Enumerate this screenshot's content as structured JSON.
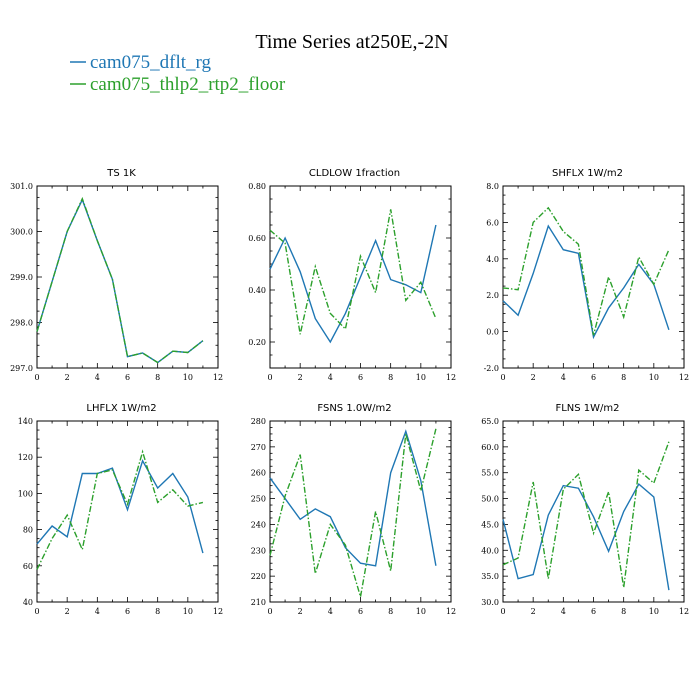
{
  "figure": {
    "title": "Time Series at250E,-2N",
    "legend": [
      {
        "name": "cam075_dflt_rg",
        "color": "#1f77b4",
        "dash": "solid"
      },
      {
        "name": "cam075_thlp2_rtp2_floor",
        "color": "#2ca02c",
        "dash": "dashdot"
      }
    ]
  },
  "chart_data": [
    {
      "type": "line",
      "title": "TS   1K",
      "x": [
        0,
        1,
        2,
        3,
        4,
        5,
        6,
        7,
        8,
        9,
        10,
        11
      ],
      "xlim": [
        0,
        12
      ],
      "xticks": [
        0,
        2,
        4,
        6,
        8,
        10,
        12
      ],
      "ylim": [
        297.0,
        301.0
      ],
      "yticks": [
        "297.0",
        "298.0",
        "299.0",
        "300.0",
        "301.0"
      ],
      "series": [
        {
          "name": "cam075_dflt_rg",
          "values": [
            297.8,
            298.9,
            300.0,
            300.7,
            299.8,
            298.95,
            297.25,
            297.33,
            297.12,
            297.37,
            297.34,
            297.6
          ]
        },
        {
          "name": "cam075_thlp2_rtp2_floor",
          "values": [
            297.8,
            298.9,
            300.0,
            300.72,
            299.8,
            298.95,
            297.25,
            297.33,
            297.12,
            297.37,
            297.34,
            297.6
          ]
        }
      ]
    },
    {
      "type": "line",
      "title": "CLDLOW   1fraction",
      "x": [
        0,
        1,
        2,
        3,
        4,
        5,
        6,
        7,
        8,
        9,
        10,
        11
      ],
      "xlim": [
        0,
        12
      ],
      "xticks": [
        0,
        2,
        4,
        6,
        8,
        10,
        12
      ],
      "ylim": [
        0.1,
        0.8
      ],
      "yticks": [
        "0.20",
        "0.40",
        "0.60",
        "0.80"
      ],
      "series": [
        {
          "name": "cam075_dflt_rg",
          "values": [
            0.48,
            0.6,
            0.47,
            0.29,
            0.2,
            0.31,
            0.45,
            0.59,
            0.44,
            0.42,
            0.39,
            0.65
          ]
        },
        {
          "name": "cam075_thlp2_rtp2_floor",
          "values": [
            0.63,
            0.58,
            0.23,
            0.49,
            0.31,
            0.25,
            0.53,
            0.39,
            0.71,
            0.36,
            0.43,
            0.29
          ]
        }
      ]
    },
    {
      "type": "line",
      "title": "SHFLX   1W/m2",
      "x": [
        0,
        1,
        2,
        3,
        4,
        5,
        6,
        7,
        8,
        9,
        10,
        11
      ],
      "xlim": [
        0,
        12
      ],
      "xticks": [
        0,
        2,
        4,
        6,
        8,
        10,
        12
      ],
      "ylim": [
        -2.0,
        8.0
      ],
      "yticks": [
        "-2.0",
        "0.0",
        "2.0",
        "4.0",
        "6.0",
        "8.0"
      ],
      "series": [
        {
          "name": "cam075_dflt_rg",
          "values": [
            1.7,
            0.9,
            3.2,
            5.8,
            4.5,
            4.3,
            -0.3,
            1.3,
            2.4,
            3.7,
            2.6,
            0.1
          ]
        },
        {
          "name": "cam075_thlp2_rtp2_floor",
          "values": [
            2.4,
            2.3,
            6.0,
            6.8,
            5.5,
            4.8,
            -0.2,
            3.0,
            0.8,
            4.1,
            2.6,
            4.5
          ]
        }
      ]
    },
    {
      "type": "line",
      "title": "LHFLX   1W/m2",
      "x": [
        0,
        1,
        2,
        3,
        4,
        5,
        6,
        7,
        8,
        9,
        10,
        11
      ],
      "xlim": [
        0,
        12
      ],
      "xticks": [
        0,
        2,
        4,
        6,
        8,
        10,
        12
      ],
      "ylim": [
        40,
        140
      ],
      "yticks": [
        "40",
        "60",
        "80",
        "100",
        "120",
        "140"
      ],
      "series": [
        {
          "name": "cam075_dflt_rg",
          "values": [
            72,
            82,
            76,
            111,
            111,
            114,
            91,
            118,
            103,
            111,
            98,
            67
          ]
        },
        {
          "name": "cam075_thlp2_rtp2_floor",
          "values": [
            58,
            75,
            88,
            69,
            111,
            113,
            94,
            123,
            95,
            102,
            93,
            95
          ]
        }
      ]
    },
    {
      "type": "line",
      "title": "FSNS   1.0W/m2",
      "x": [
        0,
        1,
        2,
        3,
        4,
        5,
        6,
        7,
        8,
        9,
        10,
        11
      ],
      "xlim": [
        0,
        12
      ],
      "xticks": [
        0,
        2,
        4,
        6,
        8,
        10,
        12
      ],
      "ylim": [
        210,
        280
      ],
      "yticks": [
        "210",
        "220",
        "230",
        "240",
        "250",
        "260",
        "270",
        "280"
      ],
      "series": [
        {
          "name": "cam075_dflt_rg",
          "values": [
            258,
            250,
            242,
            246,
            243,
            231,
            225,
            224,
            260,
            276,
            257,
            224
          ]
        },
        {
          "name": "cam075_thlp2_rtp2_floor",
          "values": [
            228,
            251,
            267,
            221,
            240,
            232,
            212,
            245,
            222,
            275,
            253,
            277
          ]
        }
      ]
    },
    {
      "type": "line",
      "title": "FLNS   1W/m2",
      "x": [
        0,
        1,
        2,
        3,
        4,
        5,
        6,
        7,
        8,
        9,
        10,
        11
      ],
      "xlim": [
        0,
        12
      ],
      "xticks": [
        0,
        2,
        4,
        6,
        8,
        10,
        12
      ],
      "ylim": [
        30.0,
        65.0
      ],
      "yticks": [
        "30.0",
        "35.0",
        "40.0",
        "45.0",
        "50.0",
        "55.0",
        "60.0",
        "65.0"
      ],
      "series": [
        {
          "name": "cam075_dflt_rg",
          "values": [
            46,
            34.5,
            35.3,
            46.8,
            52.5,
            52,
            46.5,
            39.8,
            47.5,
            52.8,
            50.3,
            32.3
          ]
        },
        {
          "name": "cam075_thlp2_rtp2_floor",
          "values": [
            37.2,
            38.5,
            53.2,
            34.5,
            51.8,
            54.7,
            43.3,
            51.3,
            32.8,
            55.5,
            53,
            61
          ]
        }
      ]
    }
  ]
}
